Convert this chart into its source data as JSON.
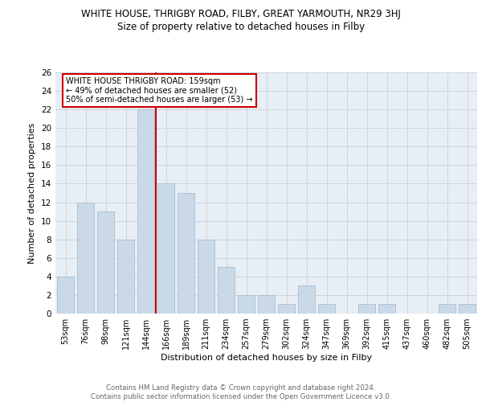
{
  "title": "WHITE HOUSE, THRIGBY ROAD, FILBY, GREAT YARMOUTH, NR29 3HJ",
  "subtitle": "Size of property relative to detached houses in Filby",
  "xlabel": "Distribution of detached houses by size in Filby",
  "ylabel": "Number of detached properties",
  "bar_labels": [
    "53sqm",
    "76sqm",
    "98sqm",
    "121sqm",
    "144sqm",
    "166sqm",
    "189sqm",
    "211sqm",
    "234sqm",
    "257sqm",
    "279sqm",
    "302sqm",
    "324sqm",
    "347sqm",
    "369sqm",
    "392sqm",
    "415sqm",
    "437sqm",
    "460sqm",
    "482sqm",
    "505sqm"
  ],
  "bar_values": [
    4,
    12,
    11,
    8,
    22,
    14,
    13,
    8,
    5,
    2,
    2,
    1,
    3,
    1,
    0,
    1,
    1,
    0,
    0,
    1,
    1
  ],
  "bar_color": "#c9d9e8",
  "bar_edgecolor": "#aabfd0",
  "vline_x": 4.5,
  "vline_color": "#cc0000",
  "annotation_text": "WHITE HOUSE THRIGBY ROAD: 159sqm\n← 49% of detached houses are smaller (52)\n50% of semi-detached houses are larger (53) →",
  "annotation_box_color": "white",
  "annotation_box_edgecolor": "#cc0000",
  "ylim": [
    0,
    26
  ],
  "yticks": [
    0,
    2,
    4,
    6,
    8,
    10,
    12,
    14,
    16,
    18,
    20,
    22,
    24,
    26
  ],
  "footer_text": "Contains HM Land Registry data © Crown copyright and database right 2024.\nContains public sector information licensed under the Open Government Licence v3.0.",
  "grid_color": "#ccd5e0",
  "background_color": "#e8eef5"
}
